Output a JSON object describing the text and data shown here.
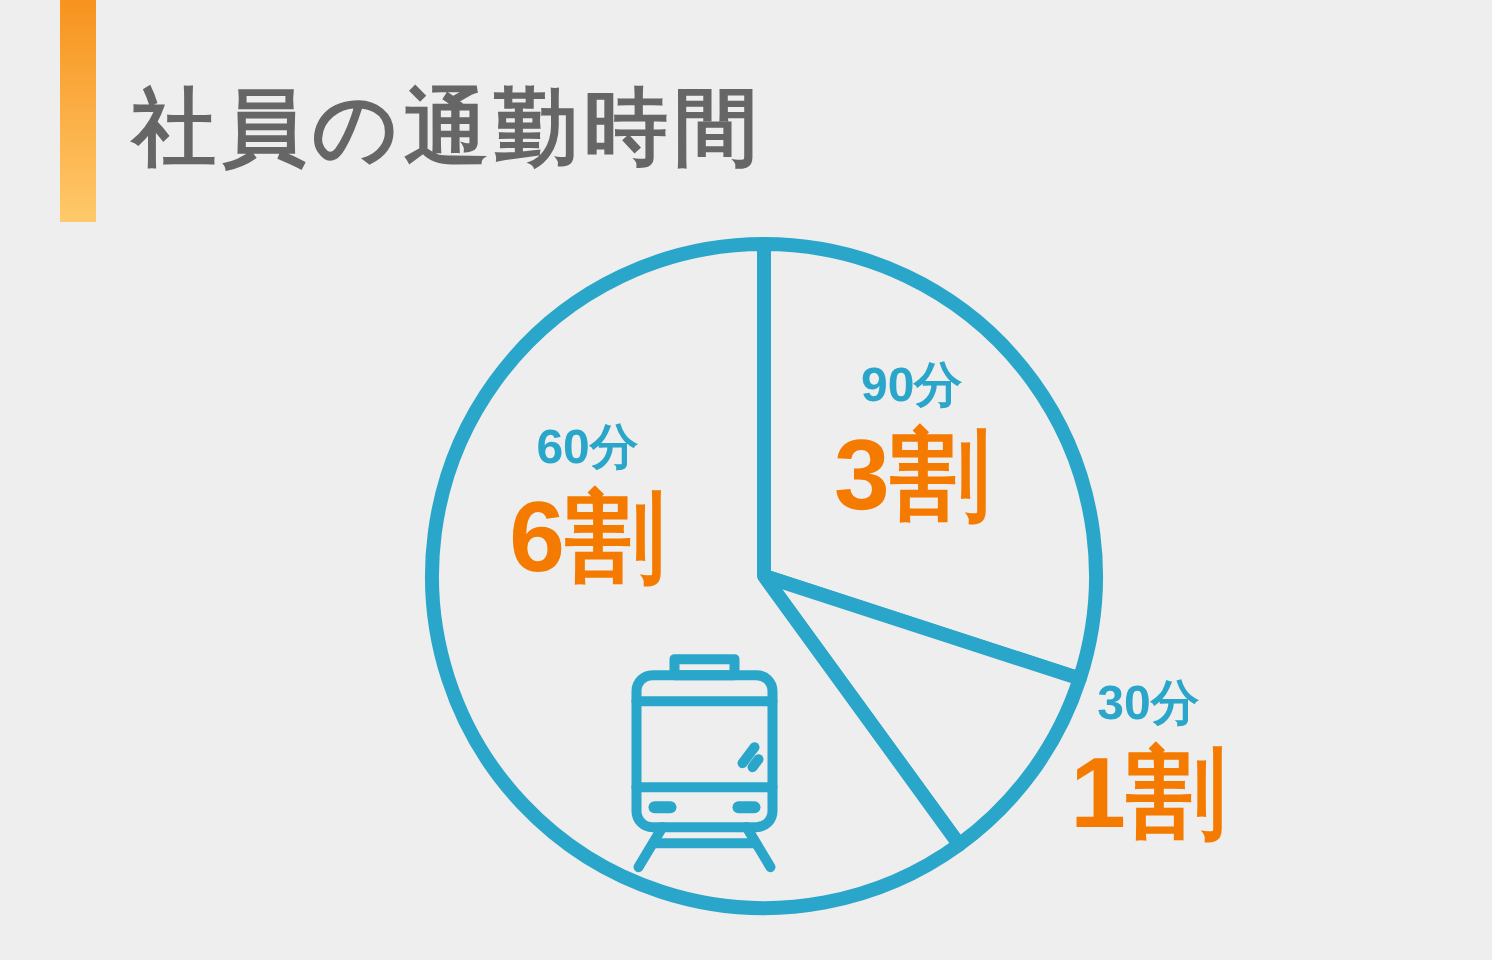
{
  "chart_data": {
    "type": "pie",
    "title": "社員の通勤時間",
    "categories": [
      "90分",
      "30分",
      "60分"
    ],
    "values": [
      3,
      1,
      6
    ],
    "value_labels": [
      "3割",
      "1割",
      "6割"
    ],
    "colors": [
      "#29a6c9",
      "#29a6c9",
      "#29a6c9"
    ]
  }
}
